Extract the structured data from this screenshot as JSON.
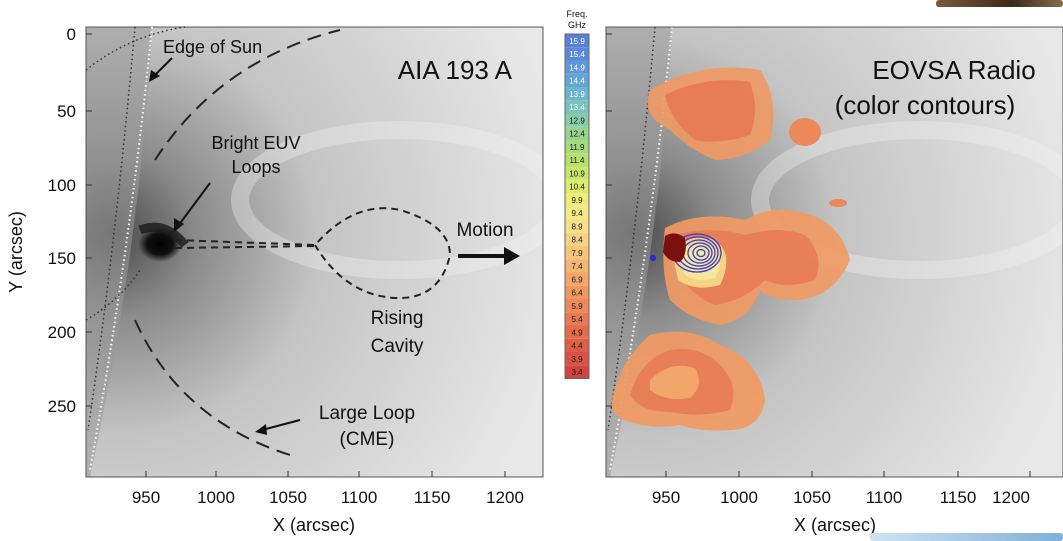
{
  "left_panel": {
    "title": "AIA 193 A",
    "y_axis_label": "Y (arcsec)",
    "x_axis_label": "X (arcsec)",
    "y_ticks": [
      "0",
      "50",
      "100",
      "150",
      "200",
      "250"
    ],
    "x_ticks": [
      "950",
      "1000",
      "1050",
      "1100",
      "1150",
      "1200"
    ],
    "annotations": {
      "edge_of_sun": "Edge of Sun",
      "bright_loops_line1": "Bright EUV",
      "bright_loops_line2": "Loops",
      "motion": "Motion",
      "rising_cavity_line1": "Rising",
      "rising_cavity_line2": "Cavity",
      "large_loop_line1": "Large Loop",
      "large_loop_line2": "(CME)"
    }
  },
  "right_panel": {
    "title_line1": "EOVSA Radio",
    "title_line2": "(color contours)",
    "x_axis_label": "X (arcsec)",
    "x_ticks": [
      "950",
      "1000",
      "1050",
      "1100",
      "1150",
      "1200"
    ]
  },
  "colorbar": {
    "title_line1": "Freq.",
    "title_line2": "GHz",
    "labels": [
      "15.9",
      "15.4",
      "14.9",
      "14.4",
      "13.9",
      "13.4",
      "12.9",
      "12.4",
      "11.9",
      "11.4",
      "10.9",
      "10.4",
      "9.9",
      "9.4",
      "8.9",
      "8.4",
      "7.9",
      "7.4",
      "6.9",
      "6.4",
      "5.9",
      "5.4",
      "4.9",
      "4.4",
      "3.9",
      "3.4"
    ],
    "colors": [
      "#5a7fd6",
      "#5d8ad8",
      "#5f98da",
      "#62a6d8",
      "#6bb6cf",
      "#79c2bd",
      "#86cba7",
      "#95d48f",
      "#a5da7c",
      "#b7e06f",
      "#c9e66b",
      "#dbeb6f",
      "#ebee7a",
      "#f2ea86",
      "#f5df8a",
      "#f6d284",
      "#f6c47c",
      "#f4b573",
      "#f2a66a",
      "#ef9761",
      "#ec885a",
      "#e87a53",
      "#e36c4d",
      "#dd5f48",
      "#d75244",
      "#cf4640"
    ]
  }
}
